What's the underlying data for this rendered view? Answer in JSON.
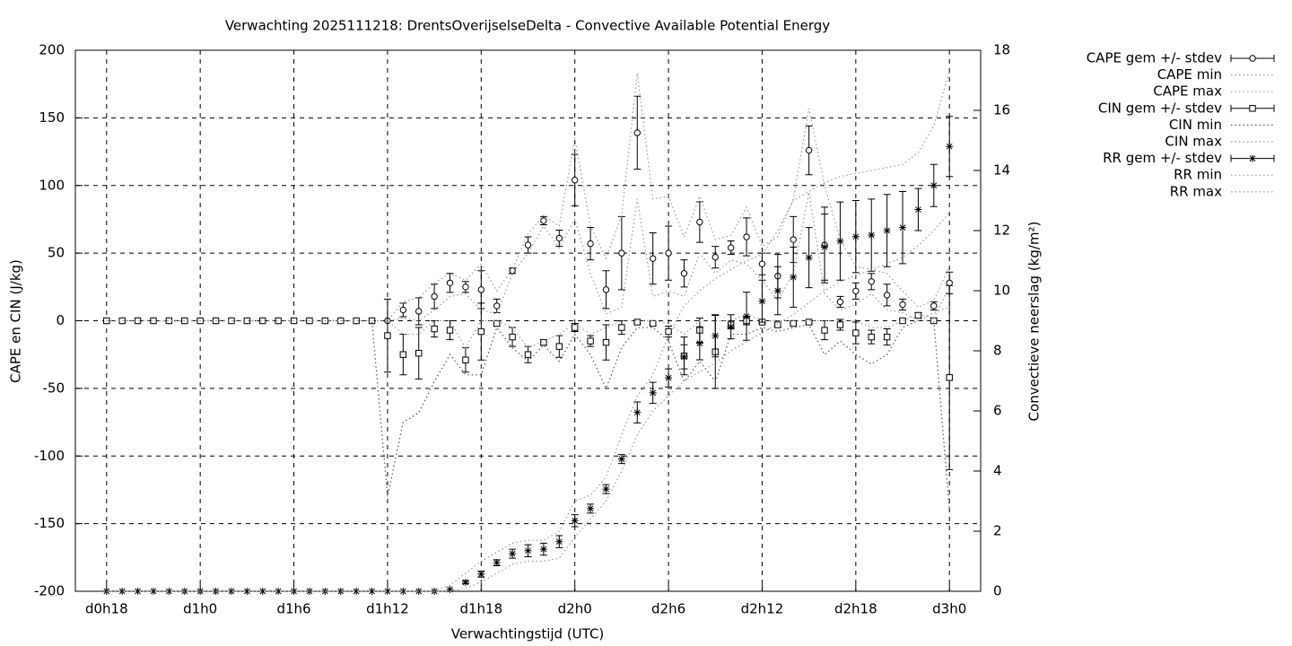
{
  "chart_data": {
    "type": "errorbar",
    "title": "Verwachting 2025111218: DrentsOverijselseDelta - Convective Available Potential Energy",
    "x_label": "Verwachtingstijd (UTC)",
    "y_label": "CAPE en CIN (J/kg)",
    "y2_label": "Convectieve neerslag (kg/m²)",
    "xlim": [
      16,
      74
    ],
    "xticks": [
      {
        "value": 18,
        "label": "d0h18"
      },
      {
        "value": 24,
        "label": "d1h0"
      },
      {
        "value": 30,
        "label": "d1h6"
      },
      {
        "value": 36,
        "label": "d1h12"
      },
      {
        "value": 42,
        "label": "d1h18"
      },
      {
        "value": 48,
        "label": "d2h0"
      },
      {
        "value": 54,
        "label": "d2h6"
      },
      {
        "value": 60,
        "label": "d2h12"
      },
      {
        "value": 66,
        "label": "d2h18"
      },
      {
        "value": 72,
        "label": "d3h0"
      }
    ],
    "ylim": [
      -200,
      200
    ],
    "yticks": [
      -200,
      -150,
      -100,
      -50,
      0,
      50,
      100,
      150,
      200
    ],
    "y2lim": [
      0,
      18
    ],
    "y2ticks": [
      0,
      2,
      4,
      6,
      8,
      10,
      12,
      14,
      16,
      18
    ],
    "grid": true,
    "legend": "outside-top-right",
    "x": [
      18,
      19,
      20,
      21,
      22,
      23,
      24,
      25,
      26,
      27,
      28,
      29,
      30,
      31,
      32,
      33,
      34,
      35,
      36,
      37,
      38,
      39,
      40,
      41,
      42,
      43,
      44,
      45,
      46,
      47,
      48,
      49,
      50,
      51,
      52,
      53,
      54,
      55,
      56,
      57,
      58,
      59,
      60,
      61,
      62,
      63,
      64,
      65,
      66,
      67,
      68,
      69,
      70,
      71,
      72
    ],
    "series": [
      {
        "name": "CAPE gem +/- stdev",
        "color": "#000000",
        "marker": "circle",
        "values": [
          0,
          0,
          0,
          0,
          0,
          0,
          0,
          0,
          0,
          0,
          0,
          0,
          0,
          0,
          0,
          0,
          0,
          0,
          0,
          8,
          7,
          18,
          28,
          25,
          23,
          11,
          37,
          56,
          74,
          61,
          104,
          57,
          23,
          50,
          139,
          46,
          50,
          35,
          73,
          47,
          54,
          62,
          42,
          33,
          60,
          126,
          56,
          14,
          22,
          29,
          19,
          12,
          4,
          11,
          28
        ],
        "stdev": [
          0,
          0,
          0,
          0,
          0,
          0,
          0,
          0,
          0,
          0,
          0,
          0,
          0,
          0,
          0,
          0,
          0,
          0,
          0,
          5,
          10,
          9,
          7,
          4,
          14,
          5,
          2,
          6,
          3,
          6,
          19,
          12,
          14,
          27,
          27,
          19,
          20,
          10,
          15,
          8,
          5,
          14,
          8,
          16,
          17,
          18,
          28,
          4,
          6,
          6,
          8,
          4,
          2,
          3,
          8
        ]
      },
      {
        "name": "CAPE min",
        "color": "#999999",
        "style": "dotted",
        "values": [
          0,
          0,
          0,
          0,
          0,
          0,
          0,
          0,
          0,
          0,
          0,
          0,
          0,
          0,
          0,
          0,
          0,
          0,
          0,
          2,
          0,
          8,
          18,
          20,
          8,
          5,
          35,
          50,
          70,
          54,
          75,
          35,
          5,
          10,
          90,
          18,
          22,
          18,
          50,
          35,
          45,
          42,
          30,
          15,
          35,
          95,
          20,
          8,
          12,
          20,
          8,
          6,
          0,
          6,
          10
        ]
      },
      {
        "name": "CAPE max",
        "color": "#999999",
        "style": "dotted",
        "values": [
          0,
          0,
          0,
          0,
          0,
          0,
          0,
          0,
          0,
          0,
          0,
          0,
          0,
          0,
          0,
          0,
          0,
          0,
          0,
          14,
          17,
          28,
          35,
          30,
          42,
          22,
          38,
          64,
          78,
          70,
          135,
          70,
          46,
          78,
          183,
          90,
          92,
          62,
          92,
          60,
          63,
          84,
          55,
          62,
          90,
          157,
          100,
          60,
          40,
          38,
          35,
          22,
          10,
          15,
          40
        ]
      },
      {
        "name": "CIN gem +/- stdev",
        "color": "#000000",
        "marker": "square",
        "values": [
          0,
          0,
          0,
          0,
          0,
          0,
          0,
          0,
          0,
          0,
          0,
          0,
          0,
          0,
          0,
          0,
          0,
          0,
          -11,
          -25,
          -24,
          -6,
          -7,
          -29,
          -8,
          -2,
          -12,
          -25,
          -16,
          -19,
          -5,
          -15,
          -16,
          -5,
          -1,
          -2,
          -8,
          -26,
          -7,
          -23,
          -3,
          0,
          -1,
          -3,
          -2,
          -1,
          -7,
          -3,
          -9,
          -12,
          -12,
          0,
          4,
          0,
          -42
        ],
        "stdev": [
          0,
          0,
          0,
          0,
          0,
          0,
          0,
          0,
          0,
          0,
          0,
          0,
          0,
          0,
          0,
          0,
          0,
          0,
          27,
          15,
          19,
          6,
          7,
          9,
          21,
          2,
          7,
          6,
          2,
          8,
          3,
          4,
          13,
          5,
          1,
          1,
          4,
          14,
          9,
          27,
          3,
          3,
          1,
          2,
          1,
          1,
          7,
          4,
          8,
          5,
          6,
          1,
          2,
          0,
          68
        ]
      },
      {
        "name": "CIN min",
        "color": "#555555",
        "style": "dotted",
        "values": [
          0,
          0,
          0,
          0,
          0,
          0,
          0,
          0,
          0,
          0,
          0,
          0,
          0,
          0,
          0,
          0,
          0,
          0,
          -130,
          -75,
          -68,
          -45,
          -25,
          -40,
          -40,
          -5,
          -20,
          -30,
          -18,
          -30,
          -10,
          -25,
          -50,
          -20,
          -5,
          -5,
          -15,
          -45,
          -30,
          -45,
          -10,
          -10,
          -5,
          -8,
          -5,
          -3,
          -25,
          -15,
          -25,
          -32,
          -25,
          -5,
          0,
          0,
          -140
        ]
      },
      {
        "name": "CIN max",
        "color": "#999999",
        "style": "dotted",
        "values": [
          0,
          0,
          0,
          0,
          0,
          0,
          0,
          0,
          0,
          0,
          0,
          0,
          0,
          0,
          0,
          0,
          0,
          0,
          0,
          -10,
          -10,
          0,
          0,
          -20,
          0,
          0,
          -5,
          -20,
          -15,
          -10,
          -2,
          -10,
          -5,
          0,
          0,
          0,
          -2,
          -10,
          0,
          0,
          0,
          5,
          0,
          0,
          0,
          0,
          0,
          0,
          0,
          -5,
          -5,
          0,
          5,
          2,
          25
        ]
      },
      {
        "name": "RR gem +/- stdev",
        "color": "#000000",
        "marker": "star",
        "axis": "y2",
        "values": [
          0,
          0,
          0,
          0,
          0,
          0,
          0,
          0,
          0,
          0,
          0,
          0,
          0,
          0,
          0,
          0,
          0,
          0,
          0,
          0,
          0,
          0,
          0.06,
          0.3,
          0.57,
          0.95,
          1.25,
          1.35,
          1.4,
          1.65,
          2.35,
          2.75,
          3.4,
          4.4,
          5.95,
          6.6,
          7.1,
          7.8,
          8.25,
          8.5,
          8.8,
          9.15,
          9.65,
          10.0,
          10.45,
          11.1,
          11.45,
          11.65,
          11.8,
          11.85,
          12.0,
          12.1,
          12.7,
          13.5,
          14.8
        ],
        "stdev": [
          0,
          0,
          0,
          0,
          0,
          0,
          0,
          0,
          0,
          0,
          0,
          0,
          0,
          0,
          0,
          0,
          0,
          0,
          0,
          0,
          0,
          0,
          0,
          0.05,
          0.1,
          0.1,
          0.15,
          0.2,
          0.2,
          0.2,
          0.2,
          0.15,
          0.15,
          0.15,
          0.35,
          0.35,
          0.3,
          0.4,
          0.55,
          0.7,
          0.4,
          0.8,
          0.7,
          0.8,
          1.0,
          1.0,
          1.1,
          1.3,
          1.2,
          1.2,
          1.2,
          1.2,
          0.7,
          0.7,
          1.0
        ]
      },
      {
        "name": "RR min",
        "color": "#999999",
        "style": "dotted",
        "axis": "y2",
        "values": [
          0,
          0,
          0,
          0,
          0,
          0,
          0,
          0,
          0,
          0,
          0,
          0,
          0,
          0,
          0,
          0,
          0,
          0,
          0,
          0,
          0,
          0,
          0,
          0.1,
          0.3,
          0.6,
          0.9,
          1.0,
          1.0,
          1.1,
          1.8,
          2.4,
          3.0,
          4.0,
          5.2,
          6.0,
          6.5,
          7.0,
          7.3,
          7.6,
          8.0,
          8.3,
          8.6,
          8.9,
          9.2,
          9.6,
          10.0,
          10.3,
          10.5,
          10.7,
          10.9,
          11.1,
          11.5,
          12.0,
          12.6
        ]
      },
      {
        "name": "RR max",
        "color": "#999999",
        "style": "dotted",
        "axis": "y2",
        "values": [
          0,
          0,
          0,
          0,
          0,
          0,
          0,
          0,
          0,
          0,
          0,
          0,
          0,
          0,
          0,
          0,
          0,
          0,
          0,
          0,
          0,
          0,
          0.2,
          0.6,
          1.0,
          1.3,
          1.6,
          1.7,
          1.7,
          2.0,
          3.0,
          3.2,
          3.8,
          5.2,
          6.5,
          7.2,
          8.5,
          9.5,
          10.0,
          10.4,
          10.7,
          11.0,
          11.2,
          12.0,
          13.0,
          13.3,
          13.6,
          13.8,
          13.9,
          14.0,
          14.1,
          14.2,
          14.6,
          15.5,
          17.3
        ]
      }
    ]
  }
}
